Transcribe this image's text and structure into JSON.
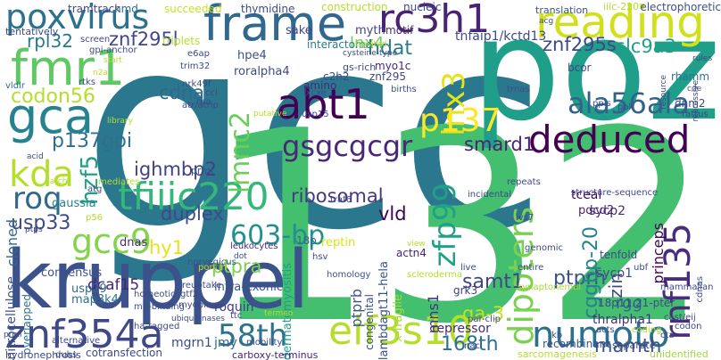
{
  "words": [
    {
      "text": "gcc",
      "color": "#2b788e"
    },
    {
      "text": "132",
      "color": "#44bf70"
    },
    {
      "text": "poz",
      "color": "#1f9e89"
    },
    {
      "text": "kruppel",
      "color": "#3b528b"
    },
    {
      "text": "frame",
      "color": "#31688e"
    },
    {
      "text": "reading",
      "color": "#d0e11c"
    },
    {
      "text": "poxvirus",
      "color": "#2c728e"
    },
    {
      "text": "rc3h1",
      "color": "#482374"
    },
    {
      "text": "fmr1",
      "color": "#5ec962"
    },
    {
      "text": "gca",
      "color": "#26828e"
    },
    {
      "text": "abt1",
      "color": "#440154"
    },
    {
      "text": "deduced",
      "color": "#440154"
    },
    {
      "text": "eif3s10",
      "color": "#b5de2b"
    },
    {
      "text": "znf354a",
      "color": "#3e4989"
    },
    {
      "text": "tfiiic220",
      "color": "#35b779"
    },
    {
      "text": "numoto",
      "color": "#2d708e"
    },
    {
      "text": "dipoters",
      "color": "#7ad151"
    },
    {
      "text": "rnf135",
      "color": "#472d7b"
    },
    {
      "text": "lnx3",
      "color": "#e5e419"
    },
    {
      "text": "p137",
      "color": "#fde725"
    },
    {
      "text": "kda",
      "color": "#b5de2b"
    },
    {
      "text": "gcc9",
      "color": "#84d44b"
    },
    {
      "text": "ala56ala",
      "color": "#33638d"
    },
    {
      "text": "zfp99",
      "color": "#1fa188"
    },
    {
      "text": "603-bp",
      "color": "#21918c"
    },
    {
      "text": "58th",
      "color": "#2c728e"
    },
    {
      "text": "gsgcgcgr",
      "color": "#482878"
    },
    {
      "text": "roq",
      "color": "#31688e"
    },
    {
      "text": "lmnc2",
      "color": "#6ccd5a"
    },
    {
      "text": "usp33",
      "color": "#3e4a89"
    },
    {
      "text": "codon56",
      "color": "#b5de2b"
    },
    {
      "text": "p137gpi",
      "color": "#2d708e"
    },
    {
      "text": "hzf5",
      "color": "#1fa187"
    },
    {
      "text": "ribosomal",
      "color": "#453781"
    },
    {
      "text": "samt1",
      "color": "#414487"
    },
    {
      "text": "ptprh",
      "color": "#3b528b"
    },
    {
      "text": "ighmbp2",
      "color": "#433e85"
    },
    {
      "text": "cdna",
      "color": "#31688e"
    },
    {
      "text": "vld",
      "color": "#440154"
    },
    {
      "text": "duplex",
      "color": "#3e4989"
    },
    {
      "text": "hy1",
      "color": "#e5e419"
    },
    {
      "text": "ptpra",
      "color": "#7ad151"
    },
    {
      "text": "168th",
      "color": "#2c728e"
    },
    {
      "text": "mamth",
      "color": "#3b528b"
    },
    {
      "text": "cggbp-20",
      "color": "#26828e"
    },
    {
      "text": "smard1",
      "color": "#482374"
    },
    {
      "text": "slc9a3",
      "color": "#1fa188"
    },
    {
      "text": "znf295s",
      "color": "#3e4989"
    },
    {
      "text": "znf295l",
      "color": "#404688"
    },
    {
      "text": "rpl32",
      "color": "#2a788e"
    },
    {
      "text": "lnx4",
      "color": "#6ece58"
    },
    {
      "text": "hdat",
      "color": "#287c8e"
    },
    {
      "text": "tnfaip1/kctd13",
      "color": "#3e4989"
    },
    {
      "text": "dcaf15",
      "color": "#482677"
    },
    {
      "text": "ga-3",
      "color": "#c8e020"
    },
    {
      "text": "zin",
      "color": "#3e4989"
    },
    {
      "text": "mns1",
      "color": "#46327e"
    },
    {
      "text": "rgg",
      "color": "#33638d"
    },
    {
      "text": "sycp1",
      "color": "#3d4d8a"
    },
    {
      "text": "sycp2",
      "color": "#482878"
    },
    {
      "text": "ptprb",
      "color": "#3b528b"
    },
    {
      "text": "roquin",
      "color": "#433e85"
    },
    {
      "text": "mgrn1",
      "color": "#3e4989"
    },
    {
      "text": "jmy",
      "color": "#31688e"
    },
    {
      "text": "thralpha1",
      "color": "#46307e"
    },
    {
      "text": "18p11.21-pter",
      "color": "#3e4989"
    },
    {
      "text": "repressor",
      "color": "#472a7a"
    },
    {
      "text": "grk3",
      "color": "#433e85"
    },
    {
      "text": "recombinant",
      "color": "#3b528b"
    },
    {
      "text": "princeps",
      "color": "#440154"
    },
    {
      "text": "tceal",
      "color": "#440154"
    },
    {
      "text": "pdcd2",
      "color": "#482475"
    },
    {
      "text": "congenital",
      "color": "#3b528b"
    },
    {
      "text": "lambdagt11-hela",
      "color": "#3b528b"
    },
    {
      "text": "x-fragile",
      "color": "#a8db34"
    },
    {
      "text": "nitrocellulose",
      "color": "#3b528b"
    },
    {
      "text": "overlapped",
      "color": "#2c728e"
    },
    {
      "text": "consensus",
      "color": "#3b528b"
    },
    {
      "text": "usp29",
      "color": "#31688e"
    },
    {
      "text": "map3k4",
      "color": "#2c728e"
    },
    {
      "text": "dermatomyositis",
      "color": "#1f9e89"
    },
    {
      "text": "intra-exonic",
      "color": "#3b528b"
    },
    {
      "text": "cloned",
      "color": "#31688e"
    },
    {
      "text": "gaussia",
      "color": "#26828e"
    },
    {
      "text": "dnas",
      "color": "#482878"
    },
    {
      "text": "hpe4",
      "color": "#3b528b"
    },
    {
      "text": "roralpha4",
      "color": "#3e4989"
    },
    {
      "text": "sake",
      "color": "#414487"
    },
    {
      "text": "thymidine",
      "color": "#3e4989"
    },
    {
      "text": "myth",
      "color": "#414487"
    },
    {
      "text": "motif",
      "color": "#482878"
    },
    {
      "text": "nucleic",
      "color": "#3e4989"
    },
    {
      "text": "interactome",
      "color": "#287c8e"
    },
    {
      "text": "reptin",
      "color": "#dde318"
    },
    {
      "text": "prmt",
      "color": "#3b528b"
    },
    {
      "text": "leukocytes",
      "color": "#482878"
    },
    {
      "text": "18p",
      "color": "#31688e"
    },
    {
      "text": "actn4",
      "color": "#482475"
    },
    {
      "text": "tenfold",
      "color": "#3e4989"
    },
    {
      "text": "unidentified",
      "color": "#a0da39"
    },
    {
      "text": "cotransfection",
      "color": "#3e4989"
    },
    {
      "text": "carboxy-terminus",
      "color": "#482475"
    },
    {
      "text": "hydronephrosis",
      "color": "#3e4989"
    },
    {
      "text": "separate",
      "color": "#3e4989"
    },
    {
      "text": "sarcomagenesis",
      "color": "#b5de2b"
    },
    {
      "text": "translation",
      "color": "#3b528b"
    },
    {
      "text": "electrophoretic",
      "color": "#3b528b"
    },
    {
      "text": "construction",
      "color": "#b5de2b"
    },
    {
      "text": "succeeded",
      "color": "#c8e020"
    },
    {
      "text": "tramtrack",
      "color": "#3e4989"
    },
    {
      "text": "nmd",
      "color": "#31688e"
    },
    {
      "text": "tentatively",
      "color": "#3e4989"
    },
    {
      "text": "vldlr",
      "color": "#31688e"
    },
    {
      "text": "rtks",
      "color": "#3e4989"
    },
    {
      "text": "amino",
      "color": "#482878"
    },
    {
      "text": "myo1c",
      "color": "#482878"
    },
    {
      "text": "births",
      "color": "#3b528b"
    },
    {
      "text": "trnas",
      "color": "#3e4989"
    },
    {
      "text": "bcor",
      "color": "#3e4989"
    },
    {
      "text": "rhamm",
      "color": "#2c728e"
    },
    {
      "text": "dnm2",
      "color": "#3e4989"
    },
    {
      "text": "rattus",
      "color": "#3e4989"
    },
    {
      "text": "repeats",
      "color": "#3e4989"
    },
    {
      "text": "incidental",
      "color": "#3e4989"
    },
    {
      "text": "structure-sequence",
      "color": "#3e4989"
    },
    {
      "text": "homology",
      "color": "#3b528b"
    },
    {
      "text": "synaptonemal",
      "color": "#a8db34"
    },
    {
      "text": "entire",
      "color": "#3e4989"
    },
    {
      "text": "genomic",
      "color": "#3e4989"
    },
    {
      "text": "mammalian",
      "color": "#3e4989"
    },
    {
      "text": "cast/eij",
      "color": "#3e4989"
    },
    {
      "text": "codon",
      "color": "#3e4989"
    },
    {
      "text": "par-clip",
      "color": "#3e4989"
    },
    {
      "text": "alternative",
      "color": "#3e4989"
    },
    {
      "text": "mobility",
      "color": "#3e4989"
    },
    {
      "text": "ttc",
      "color": "#3e4989"
    },
    {
      "text": "reuptake",
      "color": "#3e4989"
    },
    {
      "text": "pontin",
      "color": "#b5de2b"
    },
    {
      "text": "norvegicus",
      "color": "#3b528b"
    },
    {
      "text": "scleroderma",
      "color": "#b5de2b"
    },
    {
      "text": "live",
      "color": "#3e4989"
    },
    {
      "text": "ha-tagged",
      "color": "#3e4989"
    },
    {
      "text": "hsv",
      "color": "#3e4989"
    },
    {
      "text": "dubs",
      "color": "#3e4989"
    },
    {
      "text": "triplets",
      "color": "#b5de2b"
    },
    {
      "text": "gpi-anchor",
      "color": "#3e4989"
    },
    {
      "text": "screen",
      "color": "#3e4989"
    },
    {
      "text": "lxcxe",
      "color": "#3e4989"
    },
    {
      "text": "gs-rich",
      "color": "#3e4989"
    },
    {
      "text": "usp15",
      "color": "#3e4989"
    },
    {
      "text": "trim32",
      "color": "#3e4989"
    },
    {
      "text": "atr/atrip",
      "color": "#3e4989"
    },
    {
      "text": "nrk49f",
      "color": "#3e4989"
    },
    {
      "text": "c2h2",
      "color": "#3e4989"
    },
    {
      "text": "znf295",
      "color": "#3e4989"
    },
    {
      "text": "e6ap",
      "color": "#3e4989"
    },
    {
      "text": "acid",
      "color": "#3e4989"
    },
    {
      "text": "library",
      "color": "#b5de2b"
    },
    {
      "text": "acg",
      "color": "#3e4989"
    },
    {
      "text": "iiic-220",
      "color": "#b5de2b"
    },
    {
      "text": "resource",
      "color": "#3e4989"
    },
    {
      "text": "repressive",
      "color": "#3e4989"
    },
    {
      "text": "cdnas",
      "color": "#3e4989"
    },
    {
      "text": "kb",
      "color": "#3e4989"
    },
    {
      "text": "acts",
      "color": "#3e4989"
    },
    {
      "text": "coding",
      "color": "#b5de2b"
    },
    {
      "text": "cta",
      "color": "#3e4989"
    },
    {
      "text": "ubf",
      "color": "#3e4989"
    },
    {
      "text": "ppis",
      "color": "#3e4989"
    },
    {
      "text": "pok",
      "color": "#3e4989"
    },
    {
      "text": "atg",
      "color": "#3e4989"
    },
    {
      "text": "p56",
      "color": "#b5de2b"
    },
    {
      "text": "mediates",
      "color": "#b5de2b"
    },
    {
      "text": "start",
      "color": "#b5de2b"
    },
    {
      "text": "n2a",
      "color": "#b5de2b"
    },
    {
      "text": "ptps",
      "color": "#3e4989"
    },
    {
      "text": "batch",
      "color": "#b5de2b"
    },
    {
      "text": "isolated",
      "color": "#b5de2b"
    },
    {
      "text": "cysteine-type",
      "color": "#3e4989"
    },
    {
      "text": "nacl",
      "color": "#3e4989"
    },
    {
      "text": "myopia",
      "color": "#3e4989"
    },
    {
      "text": "ccl",
      "color": "#3e4989"
    },
    {
      "text": "rpa",
      "color": "#3e4989"
    },
    {
      "text": "putative",
      "color": "#b5de2b"
    },
    {
      "text": "termeo",
      "color": "#b5de2b"
    },
    {
      "text": "traf6",
      "color": "#3e4989"
    },
    {
      "text": "ivs7",
      "color": "#3e4989"
    },
    {
      "text": "mu-binding",
      "color": "#3e4989"
    },
    {
      "text": "homeotic",
      "color": "#3e4989"
    },
    {
      "text": "gtf2",
      "color": "#3e4989"
    },
    {
      "text": "prml",
      "color": "#3e4989"
    },
    {
      "text": "dot",
      "color": "#3e4989"
    },
    {
      "text": "ubiquitinases",
      "color": "#3e4989"
    },
    {
      "text": "view",
      "color": "#b5de2b"
    },
    {
      "text": "cde",
      "color": "#3e4989"
    },
    {
      "text": "rules",
      "color": "#3e4989"
    }
  ]
}
